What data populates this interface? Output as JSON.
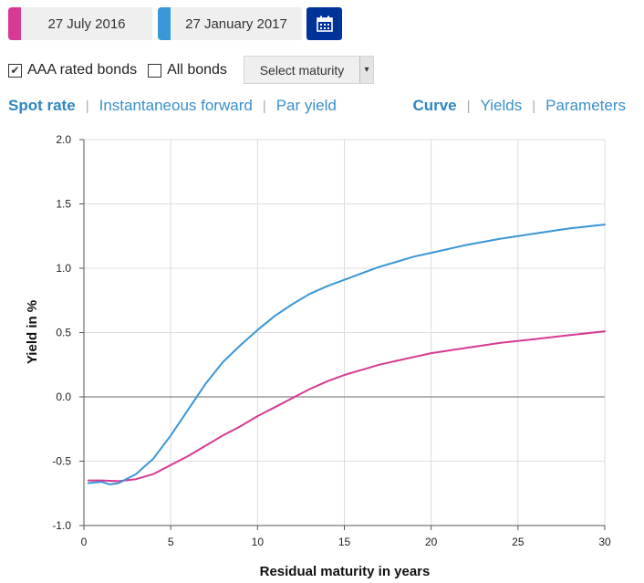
{
  "controls": {
    "date1": {
      "label": "27 July 2016",
      "color": "#d63a91"
    },
    "date2": {
      "label": "27 January 2017",
      "color": "#3a96d6"
    },
    "calendar_icon": "calendar-icon",
    "aaa_checkbox": {
      "label": "AAA rated bonds",
      "checked": true,
      "mark": "✔"
    },
    "all_checkbox": {
      "label": "All bonds",
      "checked": false,
      "mark": ""
    },
    "maturity_select": {
      "value": "Select maturity",
      "arrow": "▾"
    }
  },
  "tabs_left": [
    {
      "label": "Spot rate",
      "active": true
    },
    {
      "label": "Instantaneous forward",
      "active": false
    },
    {
      "label": "Par yield",
      "active": false
    }
  ],
  "tabs_right": [
    {
      "label": "Curve",
      "active": true
    },
    {
      "label": "Yields",
      "active": false
    },
    {
      "label": "Parameters",
      "active": false
    }
  ],
  "separator": "|",
  "chart_data": {
    "type": "line",
    "xlabel": "Residual maturity in years",
    "ylabel": "Yield in %",
    "xlim": [
      0,
      30
    ],
    "ylim": [
      -1.0,
      2.0
    ],
    "x_ticks": [
      0,
      5,
      10,
      15,
      20,
      25,
      30
    ],
    "y_ticks": [
      2.0,
      1.5,
      1.0,
      0.5,
      0.0,
      -0.5,
      -1.0
    ],
    "y_tick_labels": [
      "2.0",
      "1.5",
      "1.0",
      "0.5",
      "0.0",
      "-0.5",
      "-1.0"
    ],
    "grid": true,
    "series": [
      {
        "color": "#d63a91",
        "x": [
          0.25,
          1,
          2,
          3,
          4,
          5,
          6,
          7,
          8,
          9,
          10,
          11,
          12,
          13,
          14,
          15,
          16,
          17,
          18,
          19,
          20,
          22,
          24,
          26,
          28,
          30
        ],
        "y": [
          -0.65,
          -0.65,
          -0.655,
          -0.64,
          -0.6,
          -0.53,
          -0.46,
          -0.38,
          -0.3,
          -0.23,
          -0.15,
          -0.08,
          -0.01,
          0.06,
          0.12,
          0.17,
          0.21,
          0.25,
          0.28,
          0.31,
          0.34,
          0.38,
          0.42,
          0.45,
          0.48,
          0.51
        ]
      },
      {
        "color": "#3a96d6",
        "x": [
          0.25,
          1,
          1.5,
          2,
          3,
          4,
          5,
          6,
          7,
          8,
          9,
          10,
          11,
          12,
          13,
          14,
          15,
          16,
          17,
          18,
          19,
          20,
          22,
          24,
          26,
          28,
          30
        ],
        "y": [
          -0.67,
          -0.66,
          -0.68,
          -0.67,
          -0.6,
          -0.48,
          -0.3,
          -0.1,
          0.1,
          0.27,
          0.4,
          0.52,
          0.63,
          0.72,
          0.8,
          0.86,
          0.91,
          0.96,
          1.01,
          1.05,
          1.09,
          1.12,
          1.18,
          1.23,
          1.27,
          1.31,
          1.34
        ]
      }
    ]
  }
}
